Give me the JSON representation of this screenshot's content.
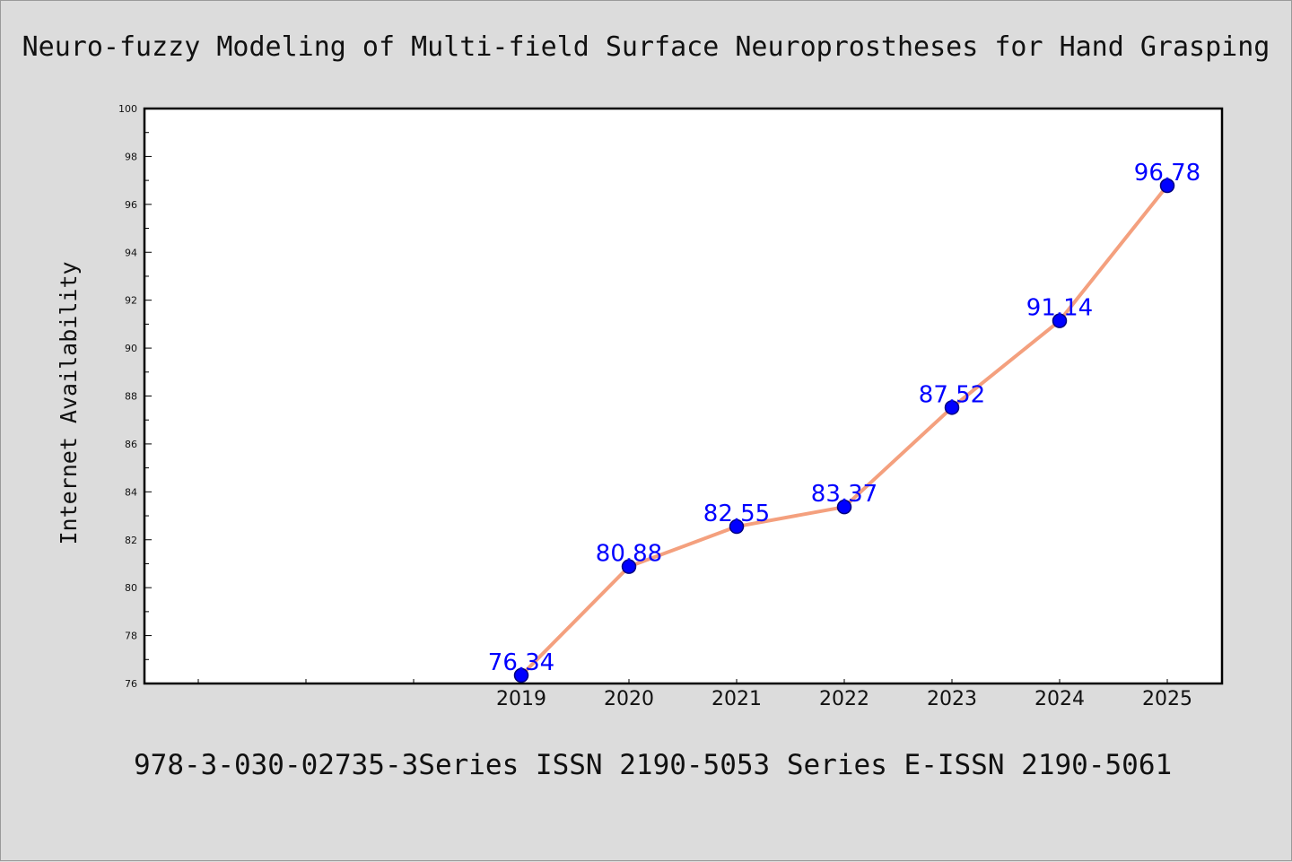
{
  "figure": {
    "title": "Neuro-fuzzy Modeling of Multi-field Surface Neuroprostheses for Hand Grasping",
    "footer": "978-3-030-02735-3Series ISSN 2190-5053 Series E-ISSN 2190-5061"
  },
  "chart_data": {
    "type": "line",
    "title": "Neuro-fuzzy Modeling of Multi-field Surface Neuroprostheses for Hand Grasping",
    "xlabel": "",
    "ylabel": "Internet Availability",
    "categories": [
      "2019",
      "2020",
      "2021",
      "2022",
      "2023",
      "2024",
      "2025"
    ],
    "series": [
      {
        "values": [
          76.34,
          80.88,
          82.55,
          83.37,
          87.52,
          91.14,
          96.78
        ]
      }
    ],
    "data_labels": [
      "76.34",
      "80.88",
      "82.55",
      "83.37",
      "87.52",
      "91.14",
      "96.78"
    ],
    "ylim": [
      76,
      100
    ],
    "yticks": [
      76,
      78,
      80,
      82,
      84,
      86,
      88,
      90,
      92,
      94,
      96,
      98,
      100
    ],
    "ytick_labels": [
      "76",
      "78",
      "80",
      "82",
      "84",
      "86",
      "88",
      "90",
      "92",
      "94",
      "96",
      "98",
      "100"
    ],
    "xlim_categories": [
      "",
      "",
      "",
      "2019",
      "2020",
      "2021",
      "2022",
      "2023",
      "2024",
      "2025"
    ],
    "grid": false,
    "legend": "none",
    "colors": {
      "line": "#f4a07e",
      "marker": "#0000ff",
      "marker_edge": "#000080",
      "data_label": "#0000ff",
      "plot_bg": "#ffffff",
      "page_bg": "#dcdcdc"
    }
  }
}
